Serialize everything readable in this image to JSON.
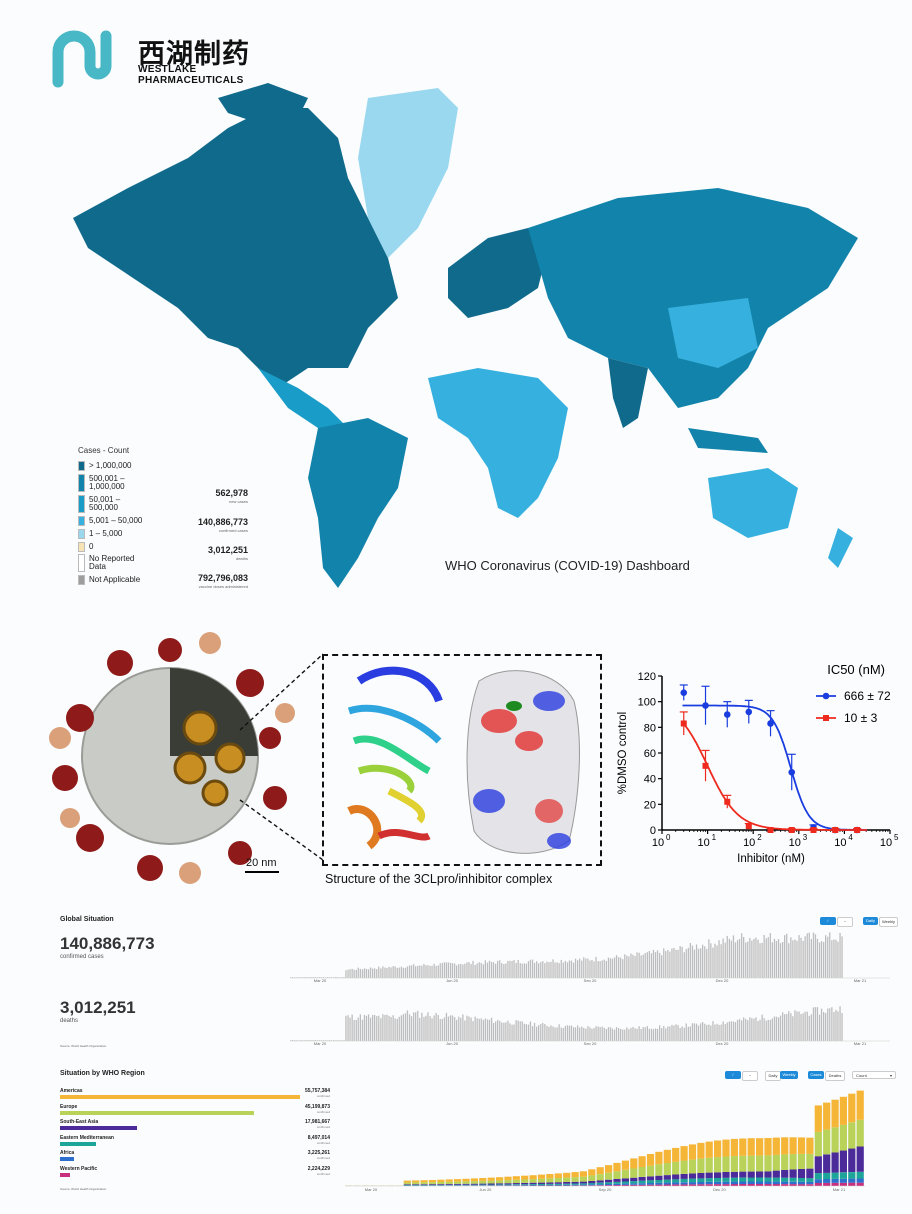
{
  "logo": {
    "cn": "西湖制药",
    "en_line1": "WESTLAKE",
    "en_line2": "PHARMACEUTICALS"
  },
  "map": {
    "legend_title": "Cases - Count",
    "legend": [
      {
        "label": "> 1,000,000",
        "color": "#0f6a8c"
      },
      {
        "label": "500,001 –\n1,000,000",
        "color": "#1284ab"
      },
      {
        "label": "50,001 –\n500,000",
        "color": "#1a9cc8"
      },
      {
        "label": "5,001 – 50,000",
        "color": "#36b1df"
      },
      {
        "label": "1 – 5,000",
        "color": "#9ad8f0"
      },
      {
        "label": "0",
        "color": "#f7e3b3"
      },
      {
        "label": "No Reported\nData",
        "color": "#ffffff"
      },
      {
        "label": "Not Applicable",
        "color": "#9e9e9e"
      }
    ],
    "stats": [
      {
        "value": "562,978",
        "label": "new cases"
      },
      {
        "value": "140,886,773",
        "label": "confirmed cases"
      },
      {
        "value": "3,012,251",
        "label": "deaths"
      },
      {
        "value": "792,796,083",
        "label": "vaccine doses administered"
      }
    ],
    "caption": "WHO Coronavirus (COVID-19) Dashboard"
  },
  "figure": {
    "scale_bar": "20 nm",
    "structure_caption": "Structure of the 3CLpro/inhibitor complex"
  },
  "chart_data": {
    "type": "scatter",
    "title": "IC50 (nM)",
    "xlabel": "Inhibitor (nM)",
    "ylabel": "%DMSO control",
    "xscale": "log",
    "xlim": [
      1,
      100000
    ],
    "ylim": [
      0,
      120
    ],
    "xticks": [
      "10^0",
      "10^1",
      "10^2",
      "10^3",
      "10^4",
      "10^5"
    ],
    "yticks": [
      0,
      20,
      40,
      60,
      80,
      100,
      120
    ],
    "legend_position": "top-right",
    "series": [
      {
        "name": "666 ± 72",
        "color": "#1a3de0",
        "x": [
          3,
          9,
          27,
          80,
          240,
          700,
          2100,
          6300,
          19000
        ],
        "y": [
          107,
          97,
          90,
          92,
          83,
          45,
          2,
          0,
          0
        ],
        "err": [
          6,
          15,
          10,
          9,
          10,
          14,
          2,
          1,
          1
        ]
      },
      {
        "name": "10 ± 3",
        "color": "#ee2a1e",
        "x": [
          3,
          9,
          27,
          80,
          240,
          700,
          2100,
          6300,
          19000
        ],
        "y": [
          83,
          50,
          22,
          3,
          0,
          0,
          0,
          0,
          0
        ],
        "err": [
          9,
          12,
          5,
          2,
          1,
          1,
          1,
          1,
          1
        ]
      }
    ]
  },
  "dashboard": {
    "global_title": "Global Situation",
    "cases_value": "140,886,773",
    "cases_label": "confirmed cases",
    "deaths_value": "3,012,251",
    "deaths_label": "deaths",
    "toggle_daily": "Daily",
    "toggle_weekly": "Weekly",
    "month_ticks": [
      "Mar 20",
      "Jun 20",
      "Sep 20",
      "Dec 20",
      "Mar 21"
    ],
    "source_note": "Source: World Health Organization",
    "region_title": "Situation by WHO Region",
    "toggle_cases": "Cases",
    "toggle_deaths": "Deaths",
    "select_value": "Count",
    "regions": [
      {
        "name": "Americas",
        "value": "55,757,384",
        "frac": 1.0,
        "color": "#f5b537"
      },
      {
        "name": "Europe",
        "value": "45,199,873",
        "frac": 0.81,
        "color": "#b8d25a"
      },
      {
        "name": "South-East Asia",
        "value": "17,981,667",
        "frac": 0.32,
        "color": "#4b2a9a"
      },
      {
        "name": "Eastern Mediterranean",
        "value": "8,497,014",
        "frac": 0.15,
        "color": "#1ea59a"
      },
      {
        "name": "Africa",
        "value": "3,225,261",
        "frac": 0.06,
        "color": "#2c6fcc"
      },
      {
        "name": "Western Pacific",
        "value": "2,224,229",
        "frac": 0.04,
        "color": "#c8307f"
      }
    ],
    "region_sub": "confirmed"
  }
}
